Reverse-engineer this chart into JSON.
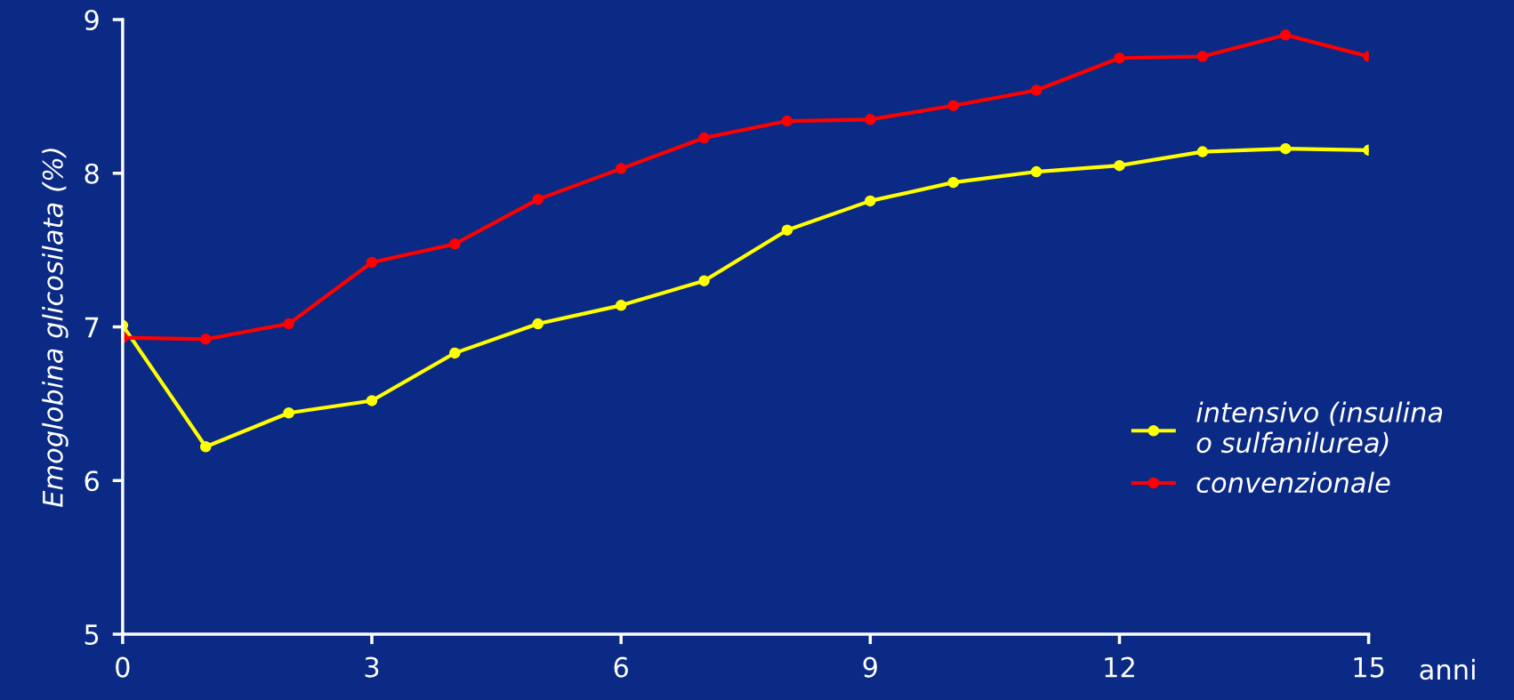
{
  "chart_data": {
    "type": "line",
    "ylabel": "Emoglobina glicosilata (%)",
    "xlabel": "anni",
    "x": [
      0,
      1,
      2,
      3,
      4,
      5,
      6,
      7,
      8,
      9,
      10,
      11,
      12,
      13,
      14,
      15
    ],
    "xlim": [
      0,
      15
    ],
    "xticks": [
      0,
      3,
      6,
      9,
      12,
      15
    ],
    "ylim": [
      5,
      9
    ],
    "yticks": [
      5,
      6,
      7,
      8,
      9
    ],
    "grid": false,
    "legend": "right",
    "marker": "circle",
    "line_style": "solid",
    "series": [
      {
        "name": "intensivo (insulina\no sulfanilurea)",
        "color": "#ffff00",
        "values": [
          7.01,
          6.22,
          6.44,
          6.52,
          6.83,
          7.02,
          7.14,
          7.3,
          7.63,
          7.82,
          7.94,
          8.01,
          8.05,
          8.14,
          8.16,
          8.15
        ]
      },
      {
        "name": "convenzionale",
        "color": "#ff0000",
        "values": [
          6.93,
          6.92,
          7.02,
          7.42,
          7.54,
          7.83,
          8.03,
          8.23,
          8.34,
          8.35,
          8.44,
          8.54,
          8.75,
          8.76,
          8.9,
          8.76
        ]
      }
    ]
  }
}
